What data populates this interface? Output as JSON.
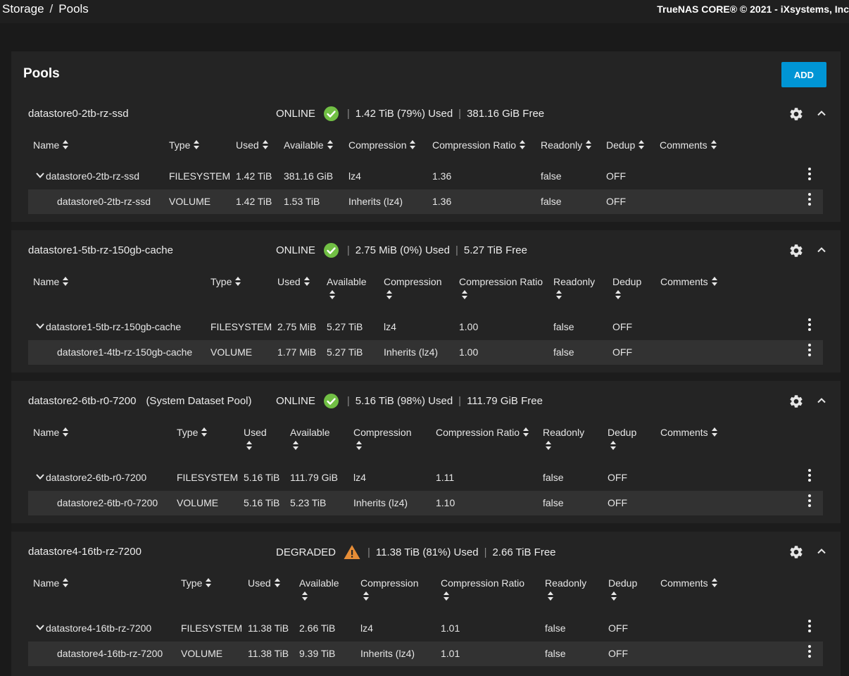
{
  "breadcrumb": {
    "storage": "Storage",
    "separator": "/",
    "pools": "Pools"
  },
  "copyright": "TrueNAS CORE® © 2021 - iXsystems, Inc",
  "card": {
    "title": "Pools",
    "add_label": "ADD"
  },
  "columns": [
    "Name",
    "Type",
    "Used",
    "Available",
    "Compression",
    "Compression Ratio",
    "Readonly",
    "Dedup",
    "Comments"
  ],
  "colors": {
    "accent": "#0095d5",
    "online": "#71bf44",
    "degraded": "#e68d37",
    "background": "#1a1a1a",
    "card": "#242424",
    "row_alt": "#323232"
  },
  "icons": [
    "check-circle-icon",
    "warning-icon",
    "gear-icon",
    "chevron-up-icon",
    "sort-icon",
    "chevron-down-icon",
    "more-vert-icon"
  ],
  "pools": [
    {
      "name": "datastore0-2tb-rz-ssd",
      "subtitle": "",
      "status": "ONLINE",
      "used": "1.42 TiB (79%) Used",
      "free": "381.16 GiB Free",
      "rows": [
        {
          "name": "datastore0-2tb-rz-ssd",
          "type": "FILESYSTEM",
          "used": "1.42 TiB",
          "available": "381.16 GiB",
          "compression": "lz4",
          "ratio": "1.36",
          "readonly": "false",
          "dedup": "OFF",
          "comments": ""
        },
        {
          "name": "datastore0-2tb-rz-ssd",
          "type": "VOLUME",
          "used": "1.42 TiB",
          "available": "1.53 TiB",
          "compression": "Inherits (lz4)",
          "ratio": "1.36",
          "readonly": "false",
          "dedup": "OFF",
          "comments": ""
        }
      ]
    },
    {
      "name": "datastore1-5tb-rz-150gb-cache",
      "subtitle": "",
      "status": "ONLINE",
      "used": "2.75 MiB (0%) Used",
      "free": "5.27 TiB Free",
      "rows": [
        {
          "name": "datastore1-5tb-rz-150gb-cache",
          "type": "FILESYSTEM",
          "used": "2.75 MiB",
          "available": "5.27 TiB",
          "compression": "lz4",
          "ratio": "1.00",
          "readonly": "false",
          "dedup": "OFF",
          "comments": ""
        },
        {
          "name": "datastore1-4tb-rz-150gb-cache",
          "type": "VOLUME",
          "used": "1.77 MiB",
          "available": "5.27 TiB",
          "compression": "Inherits (lz4)",
          "ratio": "1.00",
          "readonly": "false",
          "dedup": "OFF",
          "comments": ""
        }
      ]
    },
    {
      "name": "datastore2-6tb-r0-7200",
      "subtitle": "(System Dataset Pool)",
      "status": "ONLINE",
      "used": "5.16 TiB (98%) Used",
      "free": "111.79 GiB Free",
      "rows": [
        {
          "name": "datastore2-6tb-r0-7200",
          "type": "FILESYSTEM",
          "used": "5.16 TiB",
          "available": "111.79 GiB",
          "compression": "lz4",
          "ratio": "1.11",
          "readonly": "false",
          "dedup": "OFF",
          "comments": ""
        },
        {
          "name": "datastore2-6tb-r0-7200",
          "type": "VOLUME",
          "used": "5.16 TiB",
          "available": "5.23 TiB",
          "compression": "Inherits (lz4)",
          "ratio": "1.10",
          "readonly": "false",
          "dedup": "OFF",
          "comments": ""
        }
      ]
    },
    {
      "name": "datastore4-16tb-rz-7200",
      "subtitle": "",
      "status": "DEGRADED",
      "used": "11.38 TiB (81%) Used",
      "free": "2.66 TiB Free",
      "rows": [
        {
          "name": "datastore4-16tb-rz-7200",
          "type": "FILESYSTEM",
          "used": "11.38 TiB",
          "available": "2.66 TiB",
          "compression": "lz4",
          "ratio": "1.01",
          "readonly": "false",
          "dedup": "OFF",
          "comments": ""
        },
        {
          "name": "datastore4-16tb-rz-7200",
          "type": "VOLUME",
          "used": "11.38 TiB",
          "available": "9.39 TiB",
          "compression": "Inherits (lz4)",
          "ratio": "1.01",
          "readonly": "false",
          "dedup": "OFF",
          "comments": ""
        }
      ]
    }
  ]
}
